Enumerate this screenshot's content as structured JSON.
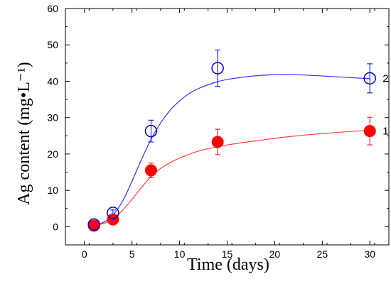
{
  "chart_data": {
    "type": "scatter",
    "title": "",
    "xlabel": "Time (days)",
    "ylabel": "Ag content  (mg•L⁻¹)",
    "xlim": [
      -2,
      32
    ],
    "ylim": [
      -5,
      60
    ],
    "x_ticks": [
      0,
      5,
      10,
      15,
      20,
      25,
      30
    ],
    "y_ticks": [
      0,
      10,
      20,
      30,
      40,
      50,
      60
    ],
    "grid": false,
    "legend": "none",
    "series": [
      {
        "name": "1",
        "color": "#ff0000",
        "line_color": "#ff4040",
        "marker": "filled-circle",
        "points": [
          {
            "x": 1,
            "y": 0.3,
            "err": 0.3
          },
          {
            "x": 3,
            "y": 2.0,
            "err": 0.6
          },
          {
            "x": 7,
            "y": 15.5,
            "err": 2.0
          },
          {
            "x": 14,
            "y": 23.3,
            "err": 3.5
          },
          {
            "x": 30,
            "y": 26.3,
            "err": 3.8
          }
        ],
        "curve": [
          [
            1,
            0.3
          ],
          [
            2,
            0.9
          ],
          [
            3,
            2.2
          ],
          [
            4,
            4.5
          ],
          [
            5,
            7.5
          ],
          [
            6,
            10.8
          ],
          [
            7,
            13.8
          ],
          [
            8,
            16.0
          ],
          [
            9,
            17.6
          ],
          [
            10,
            18.9
          ],
          [
            11,
            19.9
          ],
          [
            12,
            20.8
          ],
          [
            14,
            22.0
          ],
          [
            16,
            22.9
          ],
          [
            18,
            23.6
          ],
          [
            20,
            24.3
          ],
          [
            22,
            24.9
          ],
          [
            24,
            25.4
          ],
          [
            26,
            25.8
          ],
          [
            28,
            26.2
          ],
          [
            30,
            26.5
          ]
        ]
      },
      {
        "name": "2",
        "color": "#0000cc",
        "line_color": "#3030ff",
        "marker": "open-circle",
        "points": [
          {
            "x": 1,
            "y": 0.6,
            "err": 0.5
          },
          {
            "x": 3,
            "y": 3.8,
            "err": 0.8
          },
          {
            "x": 7,
            "y": 26.3,
            "err": 3.0
          },
          {
            "x": 14,
            "y": 43.6,
            "err": 5.0
          },
          {
            "x": 30,
            "y": 40.8,
            "err": 4.0
          }
        ],
        "curve": [
          [
            1,
            0.4
          ],
          [
            2,
            1.2
          ],
          [
            3,
            3.2
          ],
          [
            4,
            7.0
          ],
          [
            5,
            12.5
          ],
          [
            6,
            18.5
          ],
          [
            7,
            24.0
          ],
          [
            8,
            28.5
          ],
          [
            9,
            32.0
          ],
          [
            10,
            34.6
          ],
          [
            11,
            36.6
          ],
          [
            12,
            38.0
          ],
          [
            14,
            39.9
          ],
          [
            16,
            40.9
          ],
          [
            18,
            41.5
          ],
          [
            20,
            41.8
          ],
          [
            22,
            41.8
          ],
          [
            24,
            41.6
          ],
          [
            26,
            41.3
          ],
          [
            28,
            41.0
          ],
          [
            30,
            40.7
          ]
        ]
      }
    ]
  }
}
